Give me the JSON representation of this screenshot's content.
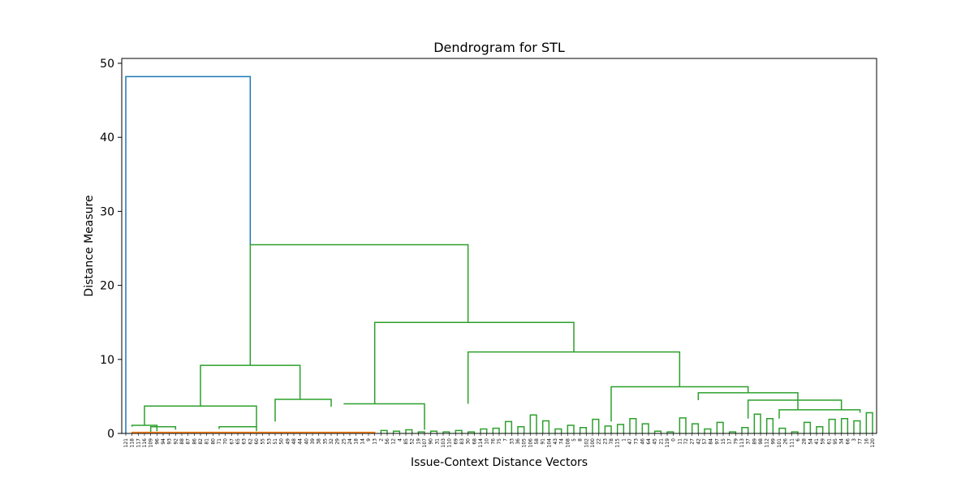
{
  "chart_data": {
    "type": "dendrogram",
    "title": "Dendrogram for STL",
    "xlabel": "Issue-Context Distance Vectors",
    "ylabel": "Distance Measure",
    "ylim": [
      0,
      50
    ],
    "yticks": [
      0,
      10,
      20,
      30,
      40,
      50
    ],
    "grid": false,
    "colors": {
      "root": "#1f77b4",
      "orange_cluster": "#ff7f0e",
      "green_cluster": "#2ca02c"
    },
    "leaf_labels": [
      "121",
      "118",
      "117",
      "116",
      "109",
      "96",
      "94",
      "93",
      "92",
      "88",
      "87",
      "86",
      "82",
      "81",
      "80",
      "71",
      "70",
      "67",
      "65",
      "63",
      "62",
      "60",
      "55",
      "53",
      "51",
      "50",
      "49",
      "48",
      "44",
      "40",
      "39",
      "38",
      "35",
      "32",
      "29",
      "25",
      "24",
      "18",
      "14",
      "9",
      "13",
      "2",
      "56",
      "12",
      "4",
      "85",
      "52",
      "19",
      "107",
      "90",
      "31",
      "103",
      "110",
      "69",
      "83",
      "30",
      "68",
      "114",
      "10",
      "76",
      "75",
      "7",
      "33",
      "36",
      "105",
      "106",
      "58",
      "91",
      "104",
      "43",
      "74",
      "108",
      "5",
      "8",
      "102",
      "100",
      "22",
      "23",
      "78",
      "115",
      "1",
      "47",
      "73",
      "46",
      "64",
      "45",
      "21",
      "119",
      "0",
      "11",
      "72",
      "27",
      "42",
      "57",
      "84",
      "97",
      "15",
      "17",
      "79",
      "113",
      "37",
      "89",
      "98",
      "112",
      "99",
      "101",
      "26",
      "111",
      "6",
      "28",
      "54",
      "41",
      "59",
      "61",
      "95",
      "34",
      "66",
      "3",
      "77",
      "16",
      "120"
    ],
    "links": [
      {
        "x1": 1,
        "x2": 40,
        "y1": 0.0,
        "y2": 0.0,
        "top": 0.15,
        "color": "orange_cluster"
      },
      {
        "x1": 0,
        "x2": 20,
        "y1": 0.0,
        "y2": 25.5,
        "top": 48.2,
        "color": "root"
      },
      {
        "x1": 3,
        "x2": 21,
        "y1": 1.1,
        "y2": 0.9,
        "top": 3.7,
        "color": "green_cluster"
      },
      {
        "x1": 1,
        "x2": 5,
        "y1": 0.9,
        "y2": 0.3,
        "top": 1.1,
        "color": "green_cluster"
      },
      {
        "x1": 4,
        "x2": 8,
        "y1": 0.2,
        "y2": 0.5,
        "top": 0.9,
        "color": "green_cluster"
      },
      {
        "x1": 15,
        "x2": 21,
        "y1": 0.6,
        "y2": 0.3,
        "top": 0.9,
        "color": "green_cluster"
      },
      {
        "x1": 24,
        "x2": 33,
        "y1": 1.6,
        "y2": 3.6,
        "top": 4.6,
        "color": "green_cluster"
      },
      {
        "x1": 12,
        "x2": 28,
        "y1": 3.7,
        "y2": 4.6,
        "top": 9.2,
        "color": "green_cluster"
      },
      {
        "x1": 20,
        "x2": 55,
        "y1": 9.2,
        "y2": 15.0,
        "top": 25.5,
        "color": "green_cluster"
      },
      {
        "x1": 35,
        "x2": 48,
        "y1": 4.0,
        "y2": 0.5,
        "top": 4.0,
        "color": "green_cluster"
      },
      {
        "x1": 40,
        "x2": 72,
        "y1": 4.0,
        "y2": 11.0,
        "top": 15.0,
        "color": "green_cluster"
      },
      {
        "x1": 55,
        "x2": 89,
        "y1": 4.0,
        "y2": 6.3,
        "top": 11.0,
        "color": "green_cluster"
      },
      {
        "x1": 78,
        "x2": 100,
        "y1": 1.6,
        "y2": 5.5,
        "top": 6.3,
        "color": "green_cluster"
      },
      {
        "x1": 92,
        "x2": 108,
        "y1": 4.5,
        "y2": 3.2,
        "top": 5.5,
        "color": "green_cluster"
      },
      {
        "x1": 100,
        "x2": 115,
        "y1": 2.0,
        "y2": 3.2,
        "top": 4.5,
        "color": "green_cluster"
      },
      {
        "x1": 105,
        "x2": 118,
        "y1": 2.0,
        "y2": 2.8,
        "top": 3.2,
        "color": "green_cluster"
      }
    ]
  }
}
